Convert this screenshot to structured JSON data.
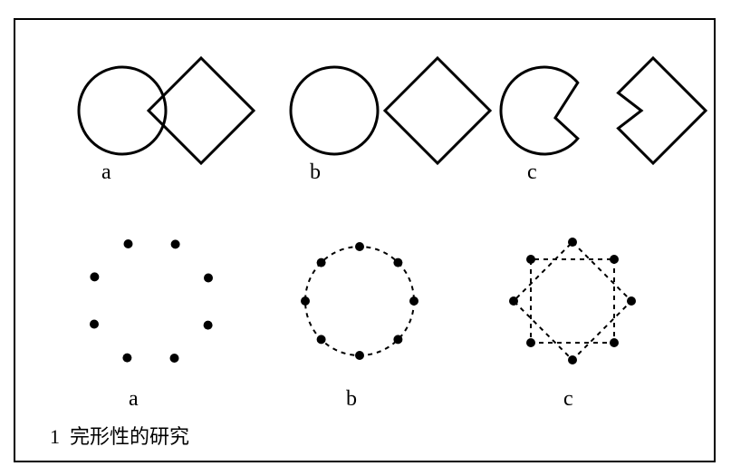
{
  "figure": {
    "caption_prefix": "1",
    "caption_text": "完形性的研究",
    "stroke_color": "#000000",
    "background_color": "#ffffff",
    "stroke_width": 3,
    "dash_pattern": "5,5",
    "dot_radius": 5,
    "row1": {
      "labels": {
        "a": "a",
        "b": "b",
        "c": "c"
      },
      "circle_radius": 48,
      "diamond_half": 58
    },
    "row2": {
      "labels": {
        "a": "a",
        "b": "b",
        "c": "c"
      },
      "ring_radius": 60,
      "n_dots": 8
    }
  }
}
